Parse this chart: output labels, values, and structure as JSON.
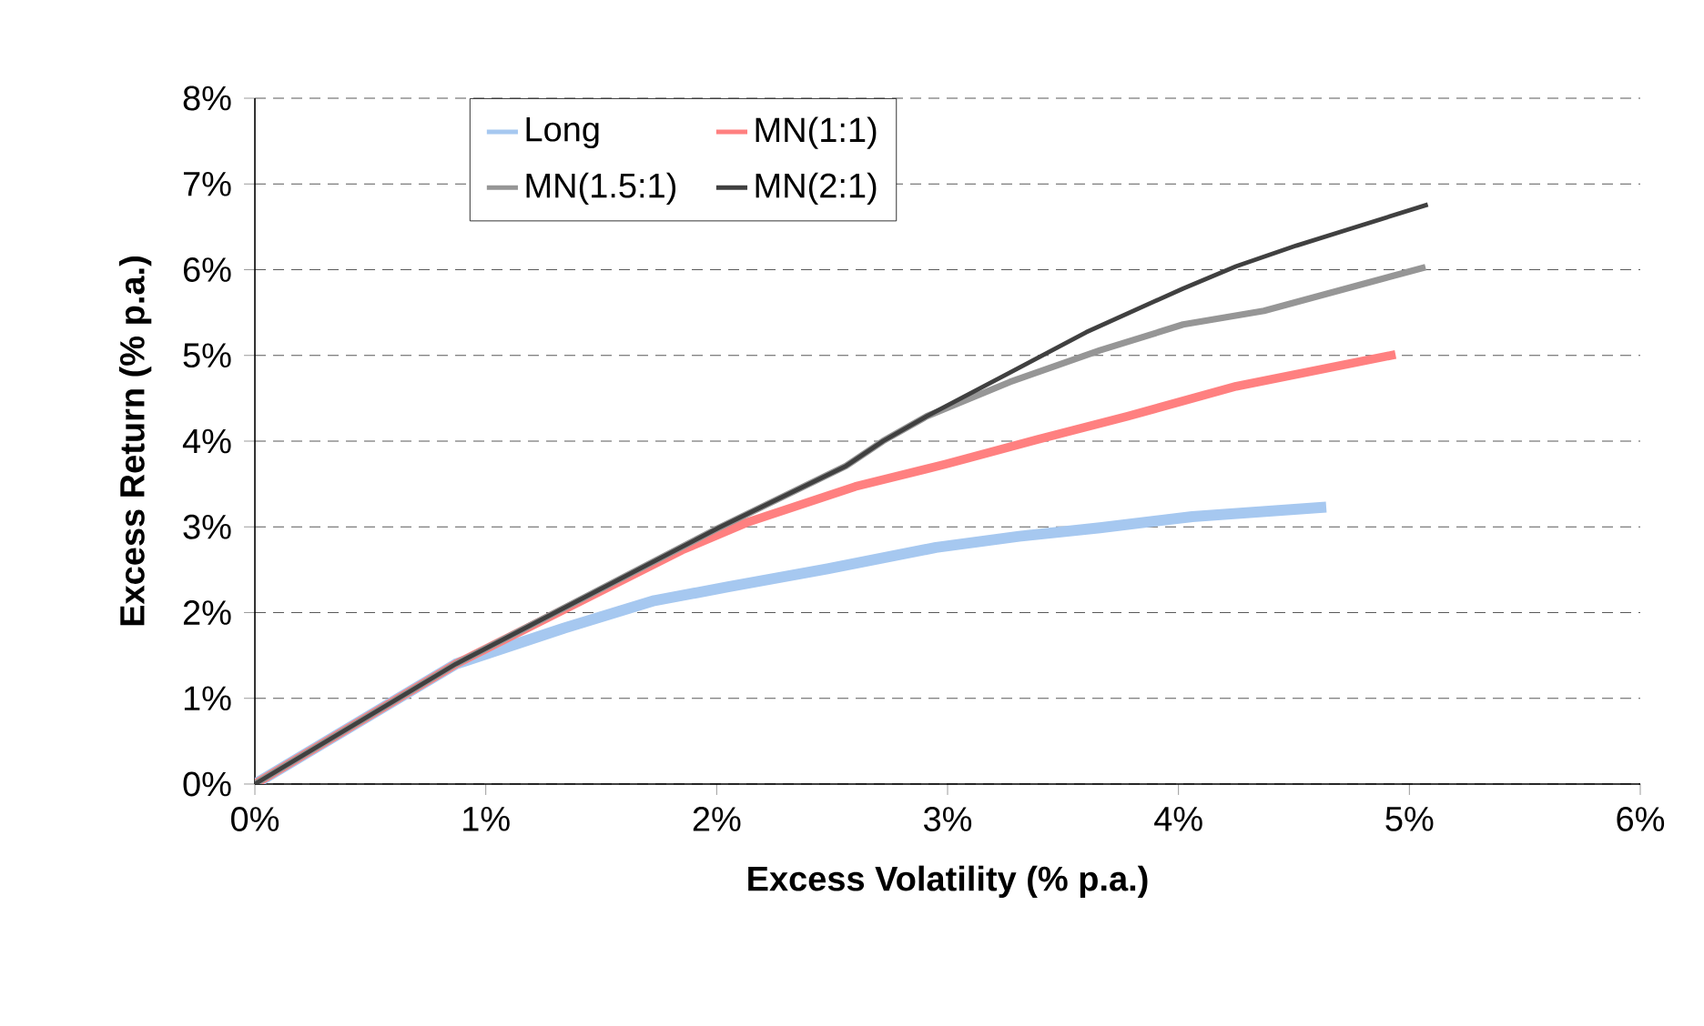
{
  "chart_data": {
    "type": "line",
    "xlabel": "Excess Volatility (% p.a.)",
    "ylabel": "Excess Return (% p.a.)",
    "xlim": [
      0,
      6
    ],
    "ylim": [
      0,
      8
    ],
    "xticks": [
      {
        "value": 0,
        "label": "0%"
      },
      {
        "value": 1,
        "label": "1%"
      },
      {
        "value": 2,
        "label": "2%"
      },
      {
        "value": 3,
        "label": "3%"
      },
      {
        "value": 4,
        "label": "4%"
      },
      {
        "value": 5,
        "label": "5%"
      },
      {
        "value": 6,
        "label": "6%"
      }
    ],
    "yticks": [
      {
        "value": 0,
        "label": "0%"
      },
      {
        "value": 1,
        "label": "1%"
      },
      {
        "value": 2,
        "label": "2%"
      },
      {
        "value": 3,
        "label": "3%"
      },
      {
        "value": 4,
        "label": "4%"
      },
      {
        "value": 5,
        "label": "5%"
      },
      {
        "value": 6,
        "label": "6%"
      },
      {
        "value": 7,
        "label": "7%"
      },
      {
        "value": 8,
        "label": "8%"
      }
    ],
    "grid": "y",
    "legend": "top left",
    "marker": "none",
    "line_style": "solid",
    "series": [
      {
        "name": "Long",
        "color": "#a6c8f0",
        "x": [
          0,
          0.87,
          1.34,
          1.73,
          2.05,
          2.48,
          2.95,
          3.31,
          3.66,
          4.06,
          4.64
        ],
        "values": [
          0,
          1.4,
          1.82,
          2.14,
          2.3,
          2.51,
          2.76,
          2.89,
          2.99,
          3.12,
          3.23
        ]
      },
      {
        "name": "MN(1:1)",
        "color": "#ff8080",
        "x": [
          0,
          0.87,
          1.85,
          2.13,
          2.6,
          2.99,
          3.39,
          3.78,
          4.25,
          4.94
        ],
        "values": [
          0,
          1.4,
          2.73,
          3.05,
          3.47,
          3.73,
          4.02,
          4.29,
          4.64,
          5.01
        ]
      },
      {
        "name": "MN(1.5:1)",
        "color": "#969696",
        "x": [
          0,
          0.87,
          2.01,
          2.56,
          2.72,
          2.91,
          3.27,
          3.66,
          4.02,
          4.37,
          5.07
        ],
        "values": [
          0,
          1.4,
          2.99,
          3.71,
          4.0,
          4.29,
          4.69,
          5.06,
          5.36,
          5.52,
          6.03
        ]
      },
      {
        "name": "MN(2:1)",
        "color": "#404040",
        "x": [
          0,
          0.87,
          2.01,
          2.56,
          2.72,
          2.91,
          3.27,
          3.6,
          4.02,
          4.25,
          4.51,
          5.08
        ],
        "values": [
          0,
          1.4,
          2.99,
          3.71,
          4.0,
          4.29,
          4.8,
          5.27,
          5.78,
          6.04,
          6.28,
          6.76
        ]
      }
    ]
  }
}
